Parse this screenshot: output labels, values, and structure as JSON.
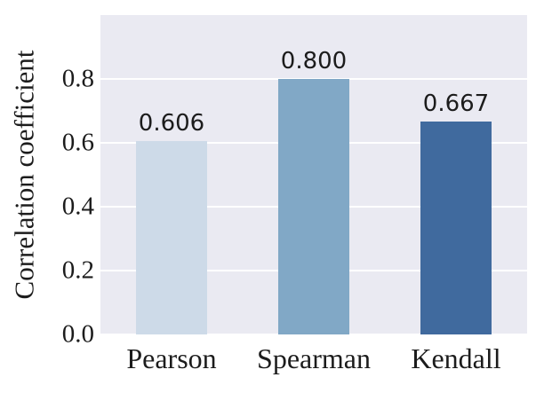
{
  "chart_data": {
    "type": "bar",
    "categories": [
      "Pearson",
      "Spearman",
      "Kendall"
    ],
    "values": [
      0.606,
      0.8,
      0.667
    ],
    "value_labels": [
      "0.606",
      "0.800",
      "0.667"
    ],
    "bar_colors": [
      "#cddae8",
      "#81a8c6",
      "#406a9e"
    ],
    "title": "",
    "xlabel": "",
    "ylabel": "Correlation coefficient",
    "ylim": [
      0.0,
      1.0
    ],
    "yticks": [
      0.0,
      0.2,
      0.4,
      0.6,
      0.8
    ],
    "ytick_labels": [
      "0.0",
      "0.2",
      "0.4",
      "0.6",
      "0.8"
    ],
    "grid": true,
    "legend": null,
    "plot_bg_color": "#eaeaf2",
    "grid_color": "#ffffff",
    "text_color": "#1c1c1c",
    "figure_bg_color": "#ffffff"
  }
}
